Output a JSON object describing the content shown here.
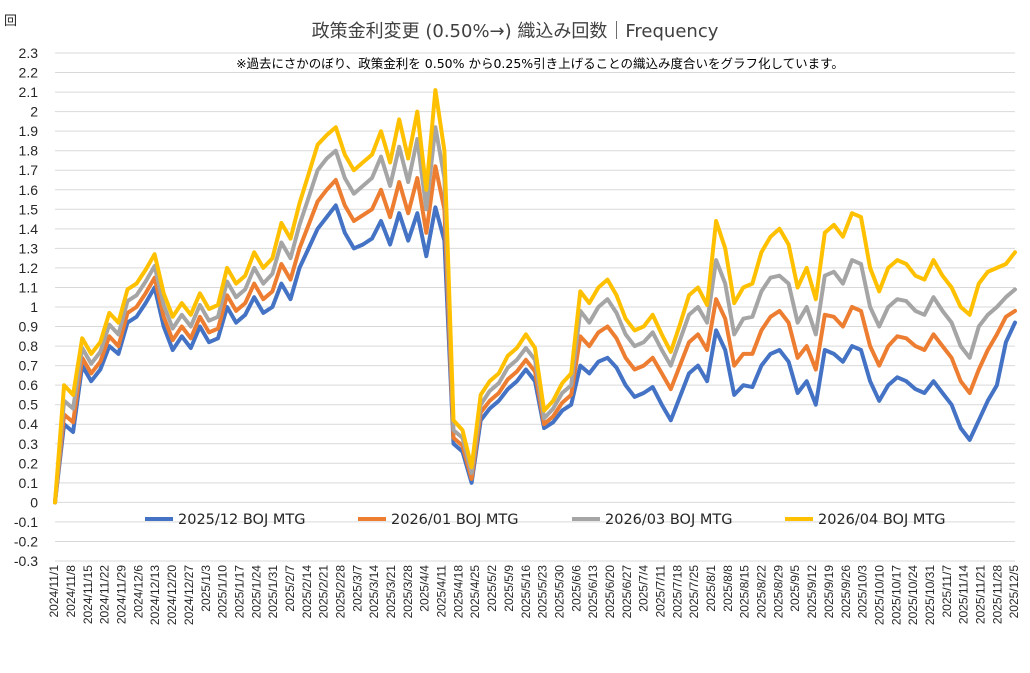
{
  "chart_data": {
    "type": "line",
    "title": "政策金利変更 (0.50%→) 織込み回数｜Frequency",
    "subtitle": "※過去にさかのぼり、政策金利を 0.50% から0.25%引き上げることの織込み度合いをグラフ化しています。",
    "ylabel": "回",
    "ylim": [
      -0.3,
      2.3
    ],
    "yticks": [
      "2.3",
      "2.2",
      "2.1",
      "2",
      "1.9",
      "1.8",
      "1.7",
      "1.6",
      "1.5",
      "1.4",
      "1.3",
      "1.2",
      "1.1",
      "1",
      "0.9",
      "0.8",
      "0.7",
      "0.6",
      "0.5",
      "0.4",
      "0.3",
      "0.2",
      "0.1",
      "0",
      "-0.1",
      "-0.2",
      "-0.3"
    ],
    "xticks": [
      "2024/11/1",
      "2024/11/8",
      "2024/11/15",
      "2024/11/22",
      "2024/11/29",
      "2024/12/6",
      "2024/12/13",
      "2024/12/20",
      "2024/12/27",
      "2025/1/3",
      "2025/1/10",
      "2025/1/17",
      "2025/1/24",
      "2025/1/31",
      "2025/2/7",
      "2025/2/14",
      "2025/2/21",
      "2025/2/28",
      "2025/3/7",
      "2025/3/14",
      "2025/3/21",
      "2025/3/28",
      "2025/4/4",
      "2025/4/11",
      "2025/4/18",
      "2025/4/25",
      "2025/5/2",
      "2025/5/9",
      "2025/5/16",
      "2025/5/23",
      "2025/5/30",
      "2025/6/6",
      "2025/6/13",
      "2025/6/20",
      "2025/6/27",
      "2025/7/4",
      "2025/7/11",
      "2025/7/18",
      "2025/7/25",
      "2025/8/1",
      "2025/8/8",
      "2025/8/15",
      "2025/8/22",
      "2025/8/29",
      "2025/9/5",
      "2025/9/12",
      "2025/9/19",
      "2025/9/26",
      "2025/10/3",
      "2025/10/10",
      "2025/10/17",
      "2025/10/24",
      "2025/10/31",
      "2025/11/7",
      "2025/11/14",
      "2025/11/21",
      "2025/11/28",
      "2025/12/5"
    ],
    "legend_position": "bottom-inside",
    "grid": true,
    "series": [
      {
        "name": "2025/12 BOJ MTG",
        "color": "#4472C4",
        "values": [
          0.0,
          0.4,
          0.36,
          0.7,
          0.62,
          0.68,
          0.8,
          0.76,
          0.92,
          0.95,
          1.02,
          1.1,
          0.9,
          0.78,
          0.85,
          0.79,
          0.9,
          0.82,
          0.84,
          1.0,
          0.92,
          0.96,
          1.05,
          0.97,
          1.0,
          1.12,
          1.04,
          1.2,
          1.3,
          1.4,
          1.46,
          1.52,
          1.38,
          1.3,
          1.32,
          1.35,
          1.44,
          1.32,
          1.48,
          1.34,
          1.48,
          1.26,
          1.51,
          1.34,
          0.3,
          0.26,
          0.1,
          0.42,
          0.48,
          0.52,
          0.58,
          0.62,
          0.68,
          0.62,
          0.38,
          0.41,
          0.47,
          0.5,
          0.7,
          0.66,
          0.72,
          0.74,
          0.69,
          0.6,
          0.54,
          0.56,
          0.59,
          0.5,
          0.42,
          0.54,
          0.66,
          0.7,
          0.62,
          0.88,
          0.78,
          0.55,
          0.6,
          0.59,
          0.7,
          0.76,
          0.78,
          0.72,
          0.56,
          0.62,
          0.5,
          0.78,
          0.76,
          0.72,
          0.8,
          0.78,
          0.62,
          0.52,
          0.6,
          0.64,
          0.62,
          0.58,
          0.56,
          0.62,
          0.56,
          0.5,
          0.38,
          0.32,
          0.42,
          0.52,
          0.6,
          0.82,
          0.92
        ]
      },
      {
        "name": "2026/01 BOJ MTG",
        "color": "#ED7D31",
        "values": [
          0.0,
          0.45,
          0.41,
          0.74,
          0.66,
          0.72,
          0.85,
          0.8,
          0.97,
          1.0,
          1.07,
          1.15,
          0.95,
          0.83,
          0.9,
          0.84,
          0.95,
          0.87,
          0.89,
          1.06,
          0.98,
          1.02,
          1.12,
          1.04,
          1.08,
          1.22,
          1.14,
          1.3,
          1.42,
          1.54,
          1.6,
          1.65,
          1.52,
          1.44,
          1.47,
          1.5,
          1.6,
          1.46,
          1.64,
          1.48,
          1.66,
          1.38,
          1.72,
          1.5,
          0.33,
          0.29,
          0.12,
          0.46,
          0.52,
          0.56,
          0.63,
          0.67,
          0.73,
          0.67,
          0.4,
          0.44,
          0.51,
          0.55,
          0.85,
          0.8,
          0.87,
          0.9,
          0.84,
          0.74,
          0.68,
          0.7,
          0.74,
          0.66,
          0.58,
          0.7,
          0.82,
          0.86,
          0.78,
          1.04,
          0.94,
          0.7,
          0.76,
          0.76,
          0.88,
          0.95,
          0.98,
          0.92,
          0.74,
          0.8,
          0.68,
          0.96,
          0.95,
          0.9,
          1.0,
          0.98,
          0.8,
          0.7,
          0.8,
          0.85,
          0.84,
          0.8,
          0.78,
          0.86,
          0.8,
          0.74,
          0.62,
          0.56,
          0.68,
          0.78,
          0.86,
          0.95,
          0.98
        ]
      },
      {
        "name": "2026/03 BOJ MTG",
        "color": "#A5A5A5",
        "values": [
          0.0,
          0.52,
          0.48,
          0.79,
          0.71,
          0.77,
          0.91,
          0.86,
          1.03,
          1.06,
          1.13,
          1.21,
          1.01,
          0.89,
          0.96,
          0.9,
          1.01,
          0.93,
          0.95,
          1.13,
          1.05,
          1.09,
          1.2,
          1.12,
          1.17,
          1.33,
          1.25,
          1.42,
          1.56,
          1.7,
          1.76,
          1.8,
          1.66,
          1.58,
          1.62,
          1.66,
          1.77,
          1.62,
          1.82,
          1.64,
          1.86,
          1.5,
          1.92,
          1.66,
          0.37,
          0.33,
          0.15,
          0.5,
          0.57,
          0.61,
          0.69,
          0.73,
          0.79,
          0.73,
          0.43,
          0.48,
          0.56,
          0.6,
          0.98,
          0.92,
          1.0,
          1.04,
          0.97,
          0.86,
          0.8,
          0.82,
          0.87,
          0.78,
          0.7,
          0.83,
          0.96,
          1.0,
          0.92,
          1.24,
          1.12,
          0.86,
          0.94,
          0.95,
          1.08,
          1.15,
          1.16,
          1.12,
          0.92,
          1.0,
          0.86,
          1.16,
          1.18,
          1.12,
          1.24,
          1.22,
          1.0,
          0.9,
          1.0,
          1.04,
          1.03,
          0.98,
          0.96,
          1.05,
          0.98,
          0.92,
          0.8,
          0.74,
          0.9,
          0.96,
          1.0,
          1.05,
          1.09
        ]
      },
      {
        "name": "2026/04 BOJ MTG",
        "color": "#FFC000",
        "values": [
          0.0,
          0.6,
          0.55,
          0.84,
          0.76,
          0.82,
          0.97,
          0.92,
          1.09,
          1.12,
          1.19,
          1.27,
          1.07,
          0.95,
          1.02,
          0.96,
          1.07,
          0.99,
          1.01,
          1.2,
          1.12,
          1.16,
          1.28,
          1.2,
          1.25,
          1.43,
          1.35,
          1.53,
          1.68,
          1.83,
          1.88,
          1.92,
          1.78,
          1.7,
          1.74,
          1.78,
          1.9,
          1.74,
          1.96,
          1.76,
          2.0,
          1.6,
          2.11,
          1.8,
          0.42,
          0.37,
          0.18,
          0.55,
          0.62,
          0.66,
          0.75,
          0.79,
          0.86,
          0.79,
          0.47,
          0.52,
          0.61,
          0.66,
          1.08,
          1.02,
          1.1,
          1.14,
          1.06,
          0.94,
          0.88,
          0.9,
          0.96,
          0.86,
          0.77,
          0.91,
          1.06,
          1.1,
          1.01,
          1.44,
          1.3,
          1.02,
          1.1,
          1.12,
          1.28,
          1.36,
          1.4,
          1.32,
          1.1,
          1.2,
          1.04,
          1.38,
          1.42,
          1.36,
          1.48,
          1.46,
          1.2,
          1.08,
          1.2,
          1.24,
          1.22,
          1.16,
          1.14,
          1.24,
          1.16,
          1.1,
          1.0,
          0.96,
          1.12,
          1.18,
          1.2,
          1.22,
          1.28
        ]
      }
    ]
  }
}
